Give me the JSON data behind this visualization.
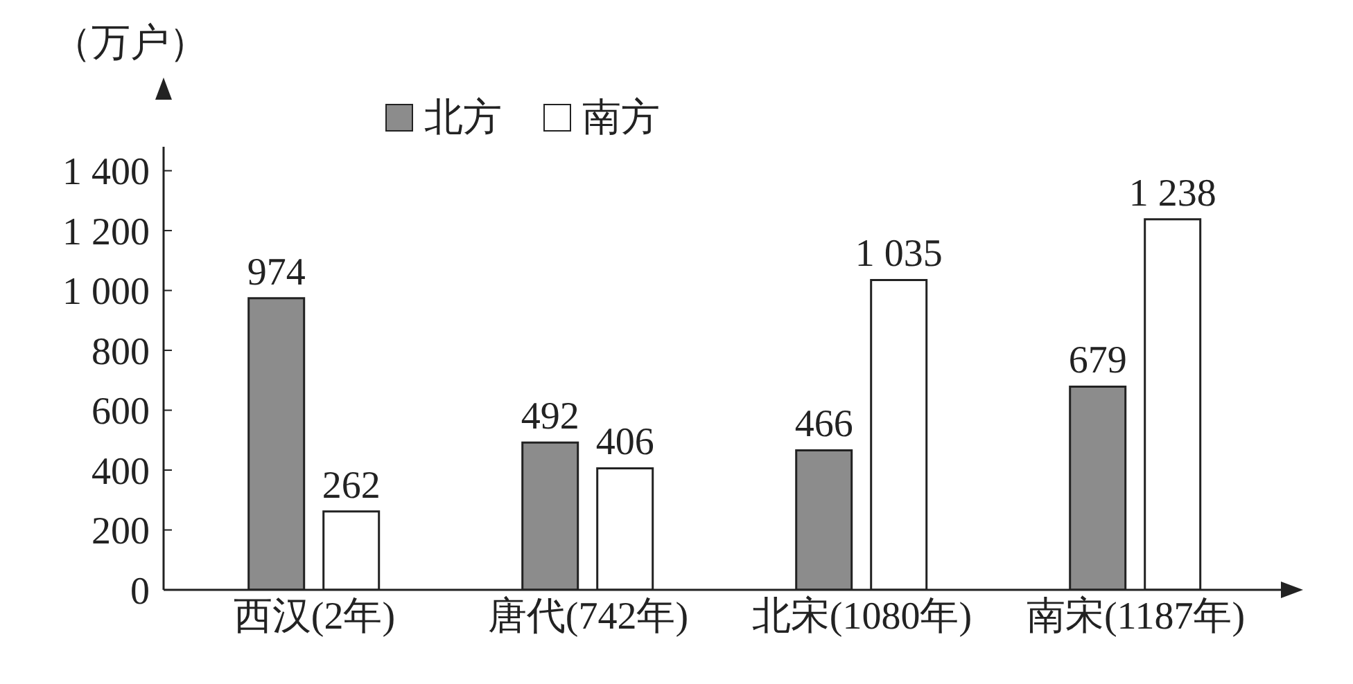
{
  "chart_data": {
    "type": "bar",
    "ylabel": "（万户）",
    "categories": [
      "西汉(2年)",
      "唐代(742年)",
      "北宋(1080年)",
      "南宋(1187年)"
    ],
    "series": [
      {
        "name": "北方",
        "color": "#8c8c8c",
        "values": [
          974,
          492,
          466,
          679
        ],
        "value_labels": [
          "974",
          "492",
          "466",
          "679"
        ]
      },
      {
        "name": "南方",
        "color": "#ffffff",
        "values": [
          262,
          406,
          1035,
          1238
        ],
        "value_labels": [
          "262",
          "406",
          "1 035",
          "1 238"
        ]
      }
    ],
    "ylim": [
      0,
      1480
    ],
    "yticks": [
      0,
      200,
      400,
      600,
      800,
      {
        "value": 1000,
        "label": "1 000"
      },
      {
        "value": 1200,
        "label": "1 200"
      },
      {
        "value": 1400,
        "label": "1 400"
      }
    ],
    "grid": false,
    "legend": "top left"
  }
}
